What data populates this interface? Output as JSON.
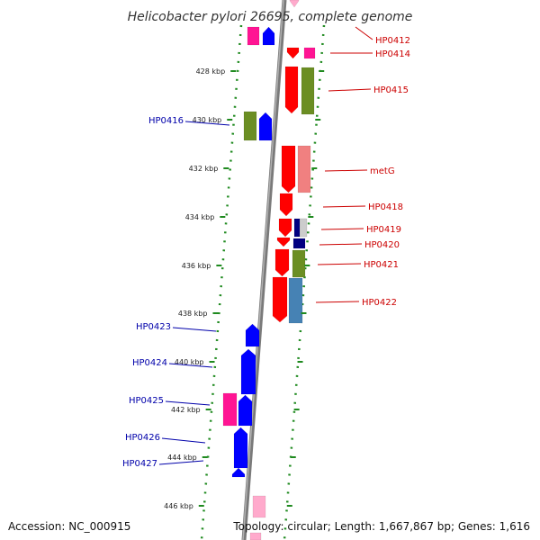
{
  "title": "Helicobacter pylori 26695, complete genome",
  "footer": {
    "accession": "Accession: NC_000915",
    "topology": "Topology: circular; Length: 1,667,867 bp; Genes: 1,616"
  },
  "colors": {
    "red": "#ff0000",
    "blue": "#0000ff",
    "olive": "#6b8e23",
    "magenta": "#ff1493",
    "salmon": "#f08080",
    "navy": "#000080",
    "steelblue": "#4682b4",
    "pink": "#ffaacc",
    "gray": "#808080",
    "green": "#228b22",
    "label_red": "#cc0000",
    "label_blue": "#0000aa"
  },
  "ticks": [
    "428 kbp",
    "430 kbp",
    "432 kbp",
    "434 kbp",
    "436 kbp",
    "438 kbp",
    "440 kbp",
    "442 kbp",
    "444 kbp",
    "446 kbp"
  ],
  "labels_right": [
    "HP0412",
    "HP0414",
    "HP0415",
    "metG",
    "HP0418",
    "HP0419",
    "HP0420",
    "HP0421",
    "HP0422"
  ],
  "labels_left": [
    "HP0416",
    "HP0423",
    "HP0424",
    "HP0425",
    "HP0426",
    "HP0427"
  ]
}
